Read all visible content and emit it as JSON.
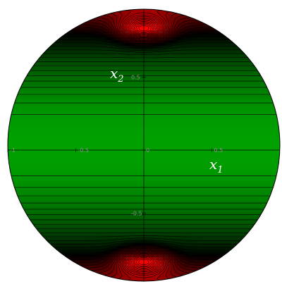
{
  "chart_data": {
    "type": "contour",
    "domain_shape": "unit disk",
    "x": {
      "label_base": "x",
      "label_sub": "1",
      "range": [
        -1,
        1
      ],
      "ticks": [
        "-1",
        "-0.5",
        "0",
        "0.5"
      ]
    },
    "y": {
      "label_base": "x",
      "label_sub": "2",
      "range": [
        -1,
        1
      ],
      "ticks": [
        "-0.5",
        "0.5"
      ]
    },
    "field": "value increases with |x2| toward the top and bottom of the disk; maxima near (0, 0.85) and (0, -0.85)",
    "colormap": [
      {
        "level": 0.0,
        "color": "#00a000"
      },
      {
        "level": 0.5,
        "color": "#000000"
      },
      {
        "level": 1.0,
        "color": "#ff0000"
      }
    ],
    "contour_line_color": "#000000"
  }
}
